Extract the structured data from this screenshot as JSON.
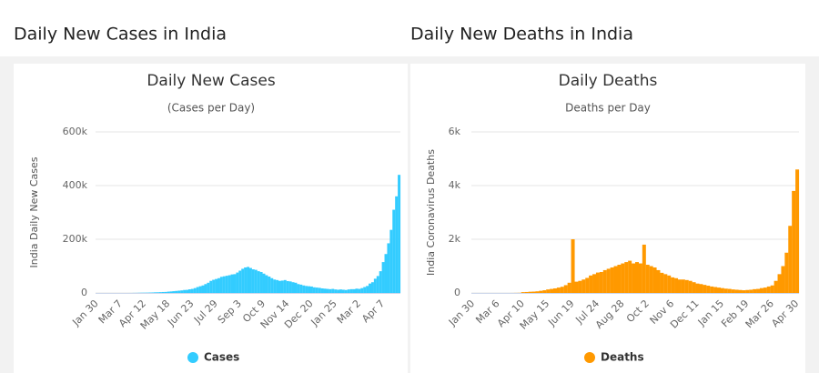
{
  "headings": [
    "Daily New Cases in India",
    "Daily New Deaths in India"
  ],
  "chart_data": [
    {
      "type": "bar",
      "title": "Daily New Cases",
      "subtitle": "(Cases per Day)",
      "y_label": "India Daily New Cases",
      "categories": [
        "Jan 30",
        null,
        null,
        null,
        null,
        null,
        null,
        null,
        null,
        "Mar 7",
        null,
        null,
        null,
        null,
        null,
        null,
        null,
        null,
        "Apr 12",
        null,
        null,
        null,
        null,
        null,
        null,
        null,
        null,
        "May 18",
        null,
        null,
        null,
        null,
        null,
        null,
        null,
        null,
        "Jun 23",
        null,
        null,
        null,
        null,
        null,
        null,
        null,
        null,
        "Jul 29",
        null,
        null,
        null,
        null,
        null,
        null,
        null,
        null,
        "Sep 3",
        null,
        null,
        null,
        null,
        null,
        null,
        null,
        null,
        "Oct 9",
        null,
        null,
        null,
        null,
        null,
        null,
        null,
        null,
        "Nov 14",
        null,
        null,
        null,
        null,
        null,
        null,
        null,
        null,
        "Dec 20",
        null,
        null,
        null,
        null,
        null,
        null,
        null,
        null,
        "Jan 25",
        null,
        null,
        null,
        null,
        null,
        null,
        null,
        null,
        "Mar 2",
        null,
        null,
        null,
        null,
        null,
        null,
        null,
        null,
        "Apr 7",
        null,
        null,
        null,
        null,
        null,
        null
      ],
      "series": [
        {
          "name": "Cases",
          "color": "#33ccff",
          "values": [
            0,
            0,
            0,
            0,
            0,
            0,
            0,
            0,
            0,
            0,
            10,
            20,
            50,
            100,
            300,
            400,
            700,
            900,
            1000,
            1200,
            1500,
            1800,
            2300,
            2500,
            3000,
            3500,
            3800,
            4900,
            5600,
            6500,
            7500,
            8500,
            9500,
            11000,
            11500,
            13500,
            15000,
            18000,
            22000,
            25000,
            28000,
            33000,
            38000,
            45000,
            49000,
            52000,
            55000,
            60000,
            62000,
            64000,
            66000,
            69000,
            70000,
            76000,
            83000,
            90000,
            95000,
            97000,
            93000,
            88000,
            86000,
            81000,
            78000,
            72000,
            66000,
            61000,
            55000,
            50000,
            48000,
            45000,
            46000,
            48000,
            44000,
            43000,
            40000,
            38000,
            33000,
            31000,
            28000,
            26000,
            25000,
            24000,
            21000,
            20000,
            19000,
            17000,
            16000,
            15000,
            14000,
            15000,
            13000,
            12000,
            13000,
            12000,
            11000,
            13000,
            14000,
            14000,
            16000,
            15000,
            18000,
            22000,
            26000,
            35000,
            40000,
            53000,
            63000,
            81000,
            115000,
            145000,
            185000,
            235000,
            310000,
            360000,
            440000
          ]
        }
      ],
      "ylim": [
        0,
        600000
      ],
      "yticks": [
        0,
        {
          "value": 200000,
          "label": "200k"
        },
        {
          "value": 400000,
          "label": "400k"
        },
        {
          "value": 600000,
          "label": "600k"
        }
      ],
      "grid": true,
      "legend": "bottom"
    },
    {
      "type": "bar",
      "title": "Daily Deaths",
      "subtitle": "Deaths per Day",
      "y_label": "India Coronavirus Deaths",
      "categories": [
        "Jan 30",
        null,
        null,
        null,
        null,
        null,
        null,
        "Mar 6",
        null,
        null,
        null,
        null,
        null,
        null,
        "Apr 10",
        null,
        null,
        null,
        null,
        null,
        null,
        "May 15",
        null,
        null,
        null,
        null,
        null,
        null,
        "Jun 19",
        null,
        null,
        null,
        null,
        null,
        null,
        "Jul 24",
        null,
        null,
        null,
        null,
        null,
        null,
        "Aug 28",
        null,
        null,
        null,
        null,
        null,
        null,
        "Oct 2",
        null,
        null,
        null,
        null,
        null,
        null,
        "Nov 6",
        null,
        null,
        null,
        null,
        null,
        null,
        "Dec 11",
        null,
        null,
        null,
        null,
        null,
        null,
        "Jan 15",
        null,
        null,
        null,
        null,
        null,
        null,
        "Feb 19",
        null,
        null,
        null,
        null,
        null,
        null,
        "Mar 26",
        null,
        null,
        null,
        null,
        null,
        null,
        "Apr 30"
      ],
      "series": [
        {
          "name": "Deaths",
          "color": "#ff9900",
          "values": [
            0,
            0,
            0,
            0,
            0,
            0,
            0,
            0,
            0,
            0,
            0,
            1,
            3,
            5,
            30,
            35,
            45,
            50,
            60,
            80,
            100,
            130,
            150,
            170,
            200,
            230,
            290,
            380,
            2000,
            420,
            450,
            500,
            560,
            650,
            700,
            760,
            780,
            850,
            900,
            950,
            1000,
            1050,
            1100,
            1150,
            1200,
            1100,
            1150,
            1100,
            1800,
            1050,
            1000,
            950,
            850,
            750,
            700,
            650,
            580,
            550,
            500,
            500,
            480,
            450,
            400,
            350,
            330,
            300,
            270,
            240,
            220,
            200,
            180,
            160,
            150,
            130,
            120,
            110,
            100,
            110,
            120,
            140,
            150,
            180,
            200,
            240,
            280,
            450,
            700,
            1000,
            1500,
            2500,
            3800,
            4600
          ]
        }
      ],
      "ylim": [
        0,
        6000
      ],
      "yticks": [
        0,
        {
          "value": 2000,
          "label": "2k"
        },
        {
          "value": 4000,
          "label": "4k"
        },
        {
          "value": 6000,
          "label": "6k"
        }
      ],
      "grid": true,
      "legend": "bottom"
    }
  ]
}
